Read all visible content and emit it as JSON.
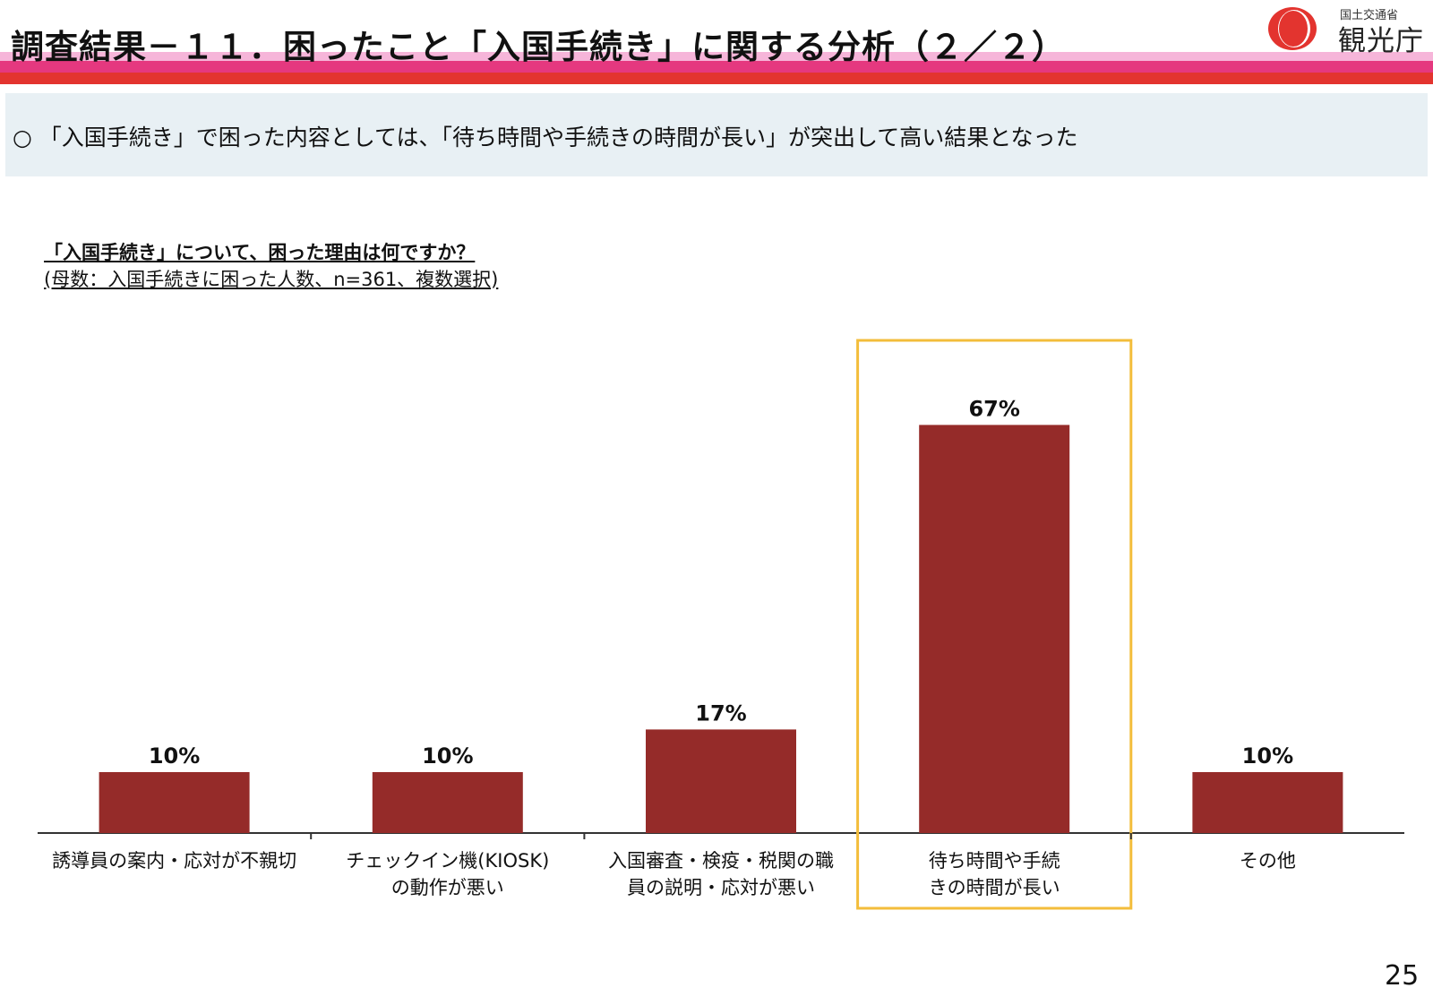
{
  "header": {
    "title": "調査結果－１１．困ったこと「入国手続き」に関する分析（２／２）",
    "logo_small": "国土交通省",
    "logo_big": "観光庁"
  },
  "summary": {
    "text": "○ 「入国手続き」で困った内容としては、「待ち時間や手続きの時間が長い」が突出して高い結果となった"
  },
  "question": {
    "title": "「入国手続き」について、困った理由は何ですか？",
    "subtitle": "(母数：入国手続きに困った人数、n=361、複数選択)"
  },
  "chart_data": {
    "type": "bar",
    "categories": [
      [
        "誘導員の案内・応対が不親切"
      ],
      [
        "チェックイン機(KIOSK)",
        "の動作が悪い"
      ],
      [
        "入国審査・検疫・税関の職",
        "員の説明・応対が悪い"
      ],
      [
        "待ち時間や手続",
        "きの時間が長い"
      ],
      [
        "その他"
      ]
    ],
    "values": [
      10,
      10,
      17,
      67,
      10
    ],
    "value_labels": [
      "10%",
      "10%",
      "17%",
      "67%",
      "10%"
    ],
    "unit": "%",
    "ylim": [
      0,
      80
    ],
    "bar_color": "#952b29",
    "highlight_index": 3,
    "highlight_color": "#f3bd3b",
    "grid": false,
    "legend": "none"
  },
  "page_number": "25"
}
